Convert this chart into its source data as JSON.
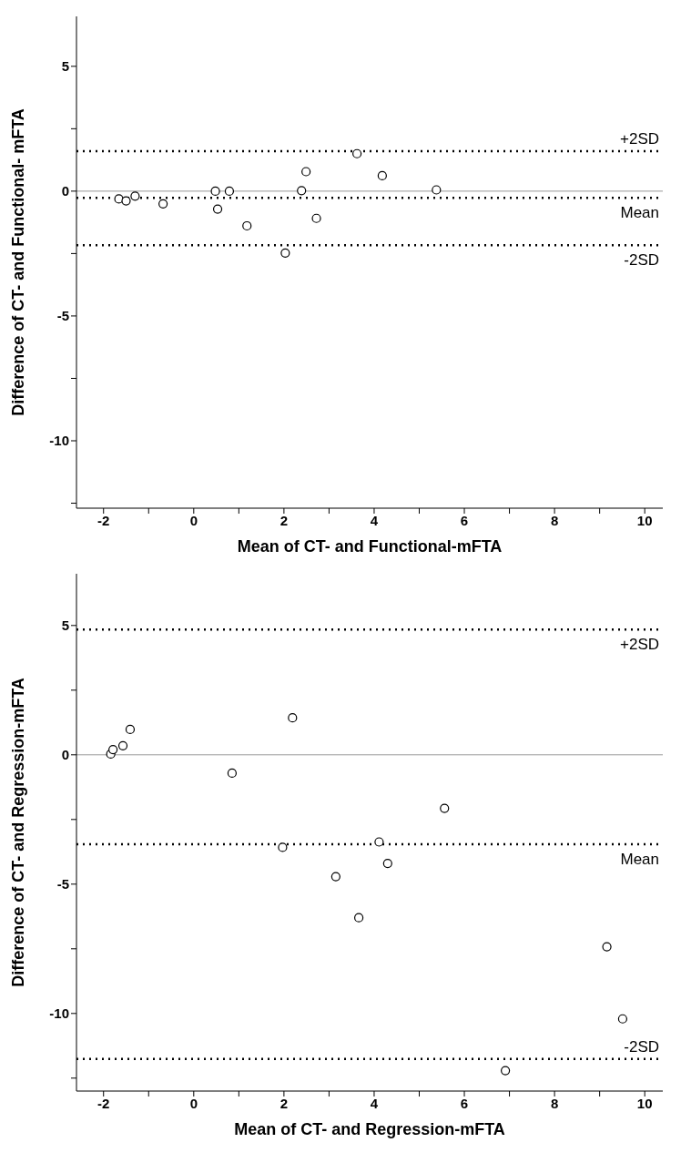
{
  "chart_data": [
    {
      "type": "scatter",
      "xlabel": "Mean of CT- and Functional-mFTA",
      "ylabel": "Difference of CT- and Functional- mFTA",
      "marker": "circle",
      "x": [
        -1.66,
        -1.5,
        -1.3,
        -0.68,
        0.48,
        0.53,
        0.79,
        1.18,
        2.03,
        2.39,
        2.49,
        2.72,
        3.62,
        4.18,
        5.38
      ],
      "series": [
        {
          "color": "#000000",
          "values": [
            -0.31,
            -0.39,
            -0.2,
            -0.51,
            0.0,
            -0.72,
            0.0,
            -1.39,
            -2.48,
            0.02,
            0.78,
            -1.09,
            1.5,
            0.62,
            0.05
          ]
        }
      ],
      "xlim": [
        -2.6,
        10.4
      ],
      "xticks": [
        -2,
        {
          "value": -1,
          "label": null
        },
        0,
        {
          "value": 1,
          "label": null
        },
        2,
        {
          "value": 3,
          "label": null
        },
        4,
        {
          "value": 5,
          "label": null
        },
        6,
        {
          "value": 7,
          "label": null
        },
        8,
        {
          "value": 9,
          "label": null
        },
        10
      ],
      "ylim": [
        -12.7,
        7
      ],
      "yticks": [
        {
          "value": -12.5,
          "label": null
        },
        -10,
        {
          "value": -7.5,
          "label": null
        },
        -5,
        {
          "value": -2.5,
          "label": null
        },
        0,
        {
          "value": 2.5,
          "label": null
        },
        5
      ],
      "ref_lines": [
        {
          "axis": "y",
          "value": 0,
          "label": null,
          "color": "#999999",
          "line_style": "solid"
        },
        {
          "axis": "y",
          "value": 1.6,
          "label": "+2SD",
          "color": "#000000",
          "line_style": "dotted"
        },
        {
          "axis": "y",
          "value": -0.27,
          "label": "Mean",
          "color": "#000000",
          "line_style": "dotted"
        },
        {
          "axis": "y",
          "value": -2.17,
          "label": "-2SD",
          "color": "#000000",
          "line_style": "dotted"
        }
      ]
    },
    {
      "type": "scatter",
      "xlabel": "Mean of CT- and Regression-mFTA",
      "ylabel": "Difference of CT- and Regression-mFTA",
      "marker": "circle",
      "x": [
        -1.84,
        -1.79,
        -1.57,
        -1.41,
        0.85,
        1.97,
        2.19,
        3.15,
        3.66,
        4.11,
        4.3,
        5.56,
        6.91,
        9.16,
        9.51
      ],
      "series": [
        {
          "color": "#000000",
          "values": [
            0.03,
            0.2,
            0.35,
            0.98,
            -0.71,
            -3.58,
            1.43,
            -4.71,
            -6.3,
            -3.37,
            -4.2,
            -2.07,
            -12.21,
            -7.42,
            -10.21
          ]
        }
      ],
      "xlim": [
        -2.6,
        10.4
      ],
      "xticks": [
        -2,
        {
          "value": -1,
          "label": null
        },
        0,
        {
          "value": 1,
          "label": null
        },
        2,
        {
          "value": 3,
          "label": null
        },
        4,
        {
          "value": 5,
          "label": null
        },
        6,
        {
          "value": 7,
          "label": null
        },
        8,
        {
          "value": 9,
          "label": null
        },
        10
      ],
      "ylim": [
        -13,
        7
      ],
      "yticks": [
        {
          "value": -12.5,
          "label": null
        },
        -10,
        {
          "value": -7.5,
          "label": null
        },
        -5,
        {
          "value": -2.5,
          "label": null
        },
        0,
        {
          "value": 2.5,
          "label": null
        },
        5
      ],
      "ref_lines": [
        {
          "axis": "y",
          "value": 0,
          "label": null,
          "color": "#999999",
          "line_style": "solid"
        },
        {
          "axis": "y",
          "value": 4.84,
          "label": "+2SD",
          "color": "#000000",
          "line_style": "dotted"
        },
        {
          "axis": "y",
          "value": -3.46,
          "label": "Mean",
          "color": "#000000",
          "line_style": "dotted"
        },
        {
          "axis": "y",
          "value": -11.76,
          "label": "-2SD",
          "color": "#000000",
          "line_style": "dotted"
        }
      ]
    }
  ]
}
